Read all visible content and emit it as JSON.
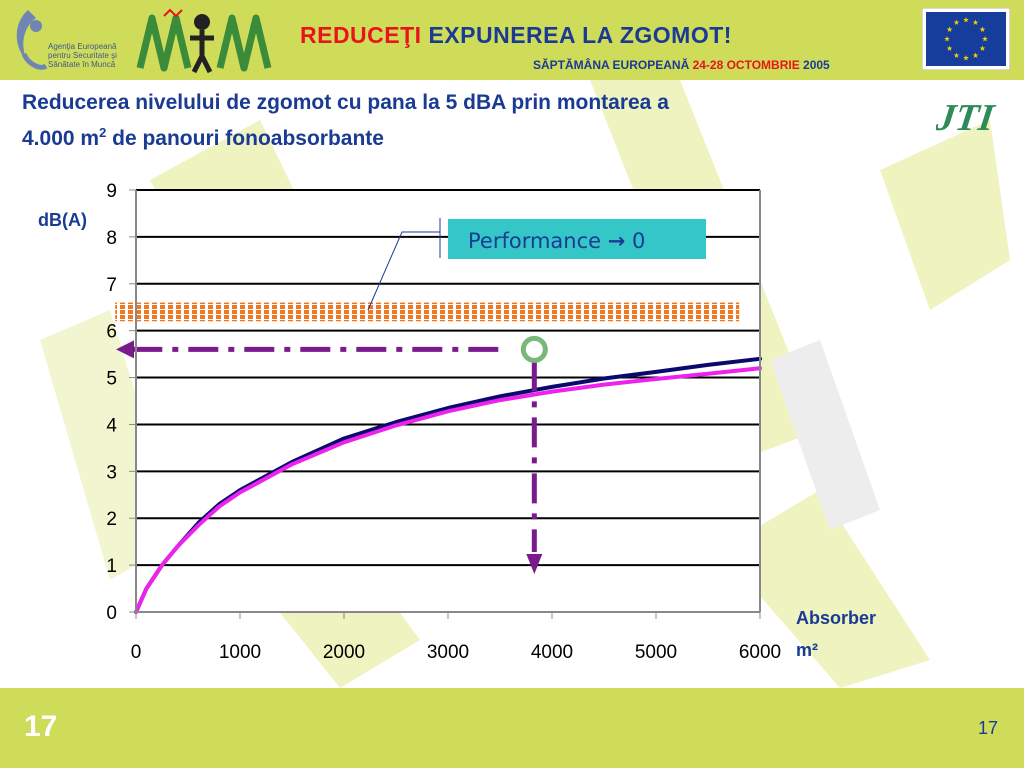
{
  "header": {
    "agency_lines": [
      "Agenţia Europeană",
      "pentru Securitate şi",
      "Sănătate în Muncă"
    ],
    "title_red": "REDUCEŢI",
    "title_rest": " EXPUNEREA LA ZGOMOT!",
    "subtitle_prefix": "SĂPTĂMÂNA EUROPEANĂ ",
    "subtitle_dates": "24-28 OCTOMBRIE",
    "subtitle_year": " 2005"
  },
  "heading": {
    "line1": "Reducerea nivelului de zgomot cu pana la 5 dBA prin montarea a",
    "line2_prefix": "4.000 m",
    "line2_sup": "2",
    "line2_suffix": " de panouri fonoabsorbante"
  },
  "jti_logo": "JTI",
  "chart_data": {
    "type": "line",
    "ylabel": "dB(A)",
    "xlabel_line1": "Absorber",
    "xlabel_line2": "m²",
    "xlim": [
      0,
      6000
    ],
    "ylim": [
      0,
      9
    ],
    "x_ticks": [
      0,
      1000,
      2000,
      3000,
      4000,
      5000,
      6000
    ],
    "y_ticks": [
      0,
      1,
      2,
      3,
      4,
      5,
      6,
      7,
      8,
      9
    ],
    "grid": "horizontal",
    "series": [
      {
        "color": "#0a0a6e",
        "x": [
          0,
          100,
          250,
          400,
          600,
          800,
          1000,
          1500,
          2000,
          2500,
          3000,
          3500,
          4000,
          4500,
          5000,
          5500,
          6000
        ],
        "values": [
          0,
          0.5,
          1.0,
          1.4,
          1.9,
          2.3,
          2.6,
          3.2,
          3.7,
          4.05,
          4.35,
          4.6,
          4.8,
          4.98,
          5.12,
          5.27,
          5.4
        ]
      },
      {
        "color": "#ee22ee",
        "x": [
          0,
          100,
          250,
          400,
          600,
          800,
          1000,
          1500,
          2000,
          2500,
          3000,
          3500,
          4000,
          4500,
          5000,
          5500,
          6000
        ],
        "values": [
          0,
          0.5,
          1.0,
          1.4,
          1.85,
          2.25,
          2.55,
          3.15,
          3.62,
          3.98,
          4.28,
          4.52,
          4.7,
          4.85,
          4.97,
          5.08,
          5.2
        ]
      }
    ],
    "target_band": {
      "y_low": 6.2,
      "y_high": 6.6,
      "x_from": -200,
      "x_to": 5800,
      "color": "#f07820"
    },
    "marker": {
      "x": 3830,
      "y": 5.6,
      "color": "#7ab87a"
    },
    "arrow_color": "#7a1a8c",
    "annotation": {
      "prefix": "Performance ",
      "arrow_glyph": "→",
      "suffix": " 0",
      "bg": "#35c7c7"
    }
  },
  "footer": {
    "slide_left": "17",
    "slide_right": "17"
  }
}
